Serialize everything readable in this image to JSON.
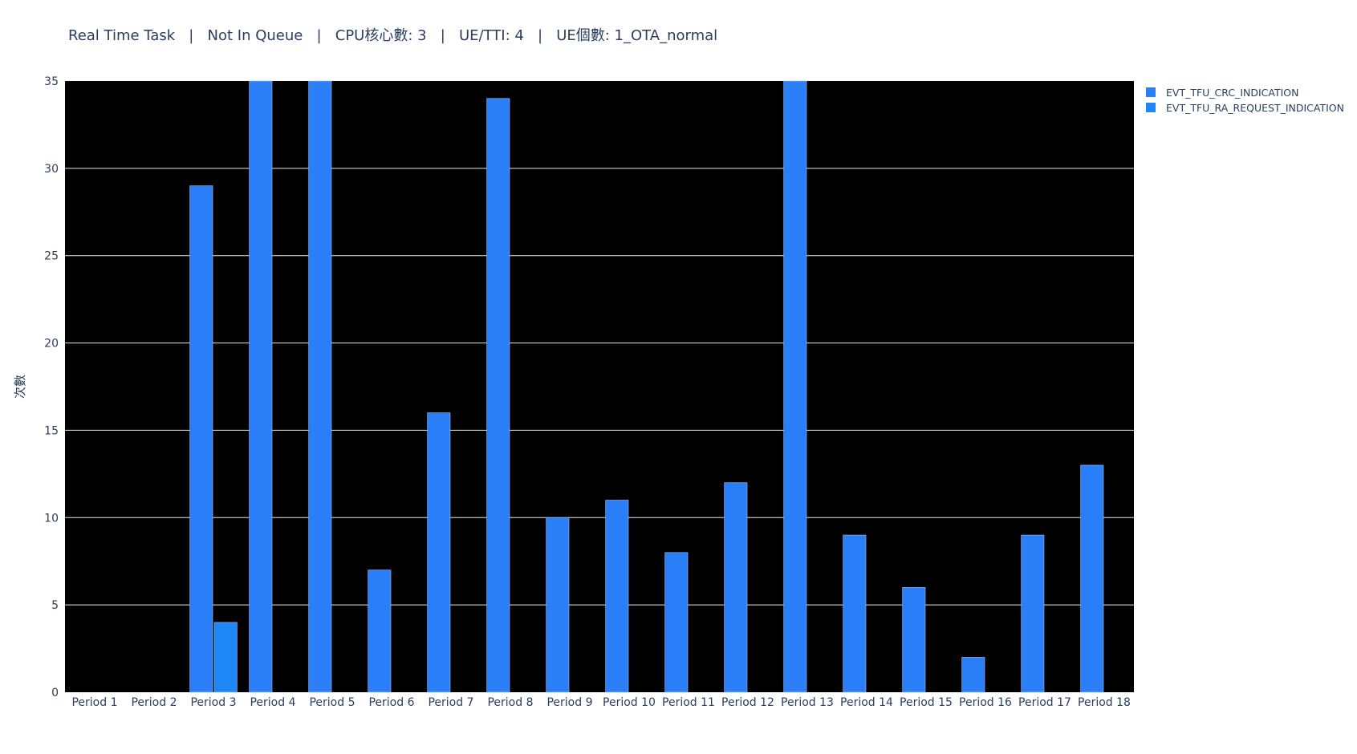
{
  "chart_data": {
    "type": "bar",
    "title": "Real Time Task   |   Not In Queue   |   CPU核心數: 3   |   UE/TTI: 4   |   UE個數: 1_OTA_normal",
    "xlabel": "",
    "ylabel": "次數",
    "ylim": [
      0,
      35
    ],
    "yticks": [
      "0",
      "5",
      "10",
      "15",
      "20",
      "25",
      "30",
      "35"
    ],
    "ytick_values": [
      0,
      5,
      10,
      15,
      20,
      25,
      30,
      35
    ],
    "grid": true,
    "legend_position": "top-right",
    "plot_background": "#000000",
    "categories": [
      "Period 1",
      "Period 2",
      "Period 3",
      "Period 4",
      "Period 5",
      "Period 6",
      "Period 7",
      "Period 8",
      "Period 9",
      "Period 10",
      "Period 11",
      "Period 12",
      "Period 13",
      "Period 14",
      "Period 15",
      "Period 16",
      "Period 17",
      "Period 18"
    ],
    "series": [
      {
        "name": "EVT_TFU_CRC_INDICATION",
        "color": "#2a7ff8",
        "values": [
          0,
          0,
          29,
          35,
          35,
          7,
          16,
          34,
          10,
          11,
          8,
          12,
          35,
          9,
          6,
          2,
          9,
          13
        ]
      },
      {
        "name": "EVT_TFU_RA_REQUEST_INDICATION",
        "color": "#1f87f5",
        "values": [
          0,
          0,
          4,
          0,
          0,
          0,
          0,
          0,
          0,
          0,
          0,
          0,
          0,
          0,
          0,
          0,
          0,
          0
        ]
      }
    ]
  }
}
